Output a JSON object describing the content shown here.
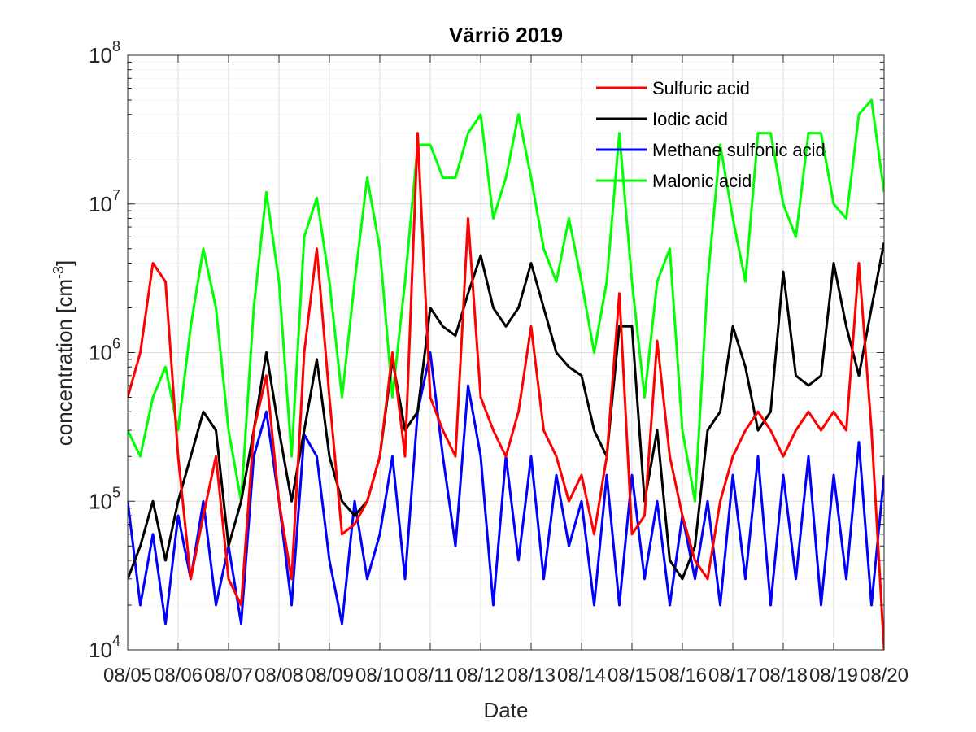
{
  "chart_data": {
    "type": "line",
    "title": "Värriö 2019",
    "xlabel": "Date",
    "ylabel": {
      "main": "concentration [cm",
      "sup": "-3",
      "close": "]"
    },
    "x_scale": "date",
    "xlim": [
      "2019-08-05",
      "2019-08-20"
    ],
    "xticks": [
      "08/05",
      "08/06",
      "08/07",
      "08/08",
      "08/09",
      "08/10",
      "08/11",
      "08/12",
      "08/13",
      "08/14",
      "08/15",
      "08/16",
      "08/17",
      "08/18",
      "08/19",
      "08/20"
    ],
    "y_scale": "log",
    "ylim": [
      10000,
      100000000
    ],
    "yticks": [
      {
        "base": "10",
        "exp": "4"
      },
      {
        "base": "10",
        "exp": "5"
      },
      {
        "base": "10",
        "exp": "6"
      },
      {
        "base": "10",
        "exp": "7"
      },
      {
        "base": "10",
        "exp": "8"
      }
    ],
    "grid": true,
    "minor_grid": true,
    "legend_position": "top-right",
    "series": [
      {
        "name": "Sulfuric acid",
        "color": "#ff0000",
        "x": [
          "2019-08-05 00:00",
          "2019-08-05 06:00",
          "2019-08-05 12:00",
          "2019-08-05 18:00",
          "2019-08-06 00:00",
          "2019-08-06 06:00",
          "2019-08-06 12:00",
          "2019-08-06 18:00",
          "2019-08-07 00:00",
          "2019-08-07 06:00",
          "2019-08-07 12:00",
          "2019-08-07 18:00",
          "2019-08-08 00:00",
          "2019-08-08 06:00",
          "2019-08-08 12:00",
          "2019-08-08 18:00",
          "2019-08-09 00:00",
          "2019-08-09 06:00",
          "2019-08-09 12:00",
          "2019-08-09 18:00",
          "2019-08-10 00:00",
          "2019-08-10 06:00",
          "2019-08-10 12:00",
          "2019-08-10 18:00",
          "2019-08-11 00:00",
          "2019-08-11 06:00",
          "2019-08-11 12:00",
          "2019-08-11 18:00",
          "2019-08-12 00:00",
          "2019-08-12 06:00",
          "2019-08-12 12:00",
          "2019-08-12 18:00",
          "2019-08-13 00:00",
          "2019-08-13 06:00",
          "2019-08-13 12:00",
          "2019-08-13 18:00",
          "2019-08-14 00:00",
          "2019-08-14 06:00",
          "2019-08-14 12:00",
          "2019-08-14 18:00",
          "2019-08-15 00:00",
          "2019-08-15 06:00",
          "2019-08-15 12:00",
          "2019-08-15 18:00",
          "2019-08-16 00:00",
          "2019-08-16 06:00",
          "2019-08-16 12:00",
          "2019-08-16 18:00",
          "2019-08-17 00:00",
          "2019-08-17 06:00",
          "2019-08-17 12:00",
          "2019-08-17 18:00",
          "2019-08-18 00:00",
          "2019-08-18 06:00",
          "2019-08-18 12:00",
          "2019-08-18 18:00",
          "2019-08-19 00:00",
          "2019-08-19 06:00",
          "2019-08-19 12:00",
          "2019-08-19 18:00",
          "2019-08-20 00:00"
        ],
        "y": [
          500000,
          1000000,
          4000000,
          3000000,
          200000,
          30000,
          80000,
          200000,
          30000,
          20000,
          300000,
          700000,
          100000,
          30000,
          1000000,
          5000000,
          500000,
          60000,
          70000,
          100000,
          200000,
          1000000,
          200000,
          30000000,
          500000,
          300000,
          200000,
          8000000,
          500000,
          300000,
          200000,
          400000,
          1500000,
          300000,
          200000,
          100000,
          150000,
          60000,
          200000,
          2500000,
          60000,
          80000,
          1200000,
          200000,
          80000,
          40000,
          30000,
          100000,
          200000,
          300000,
          400000,
          300000,
          200000,
          300000,
          400000,
          300000,
          400000,
          300000,
          4000000,
          300000,
          10000
        ]
      },
      {
        "name": "Iodic acid",
        "color": "#000000",
        "x": [
          "2019-08-05 00:00",
          "2019-08-05 06:00",
          "2019-08-05 12:00",
          "2019-08-05 18:00",
          "2019-08-06 00:00",
          "2019-08-06 06:00",
          "2019-08-06 12:00",
          "2019-08-06 18:00",
          "2019-08-07 00:00",
          "2019-08-07 06:00",
          "2019-08-07 12:00",
          "2019-08-07 18:00",
          "2019-08-08 00:00",
          "2019-08-08 06:00",
          "2019-08-08 12:00",
          "2019-08-08 18:00",
          "2019-08-09 00:00",
          "2019-08-09 06:00",
          "2019-08-09 12:00",
          "2019-08-09 18:00",
          "2019-08-10 00:00",
          "2019-08-10 06:00",
          "2019-08-10 12:00",
          "2019-08-10 18:00",
          "2019-08-11 00:00",
          "2019-08-11 06:00",
          "2019-08-11 12:00",
          "2019-08-11 18:00",
          "2019-08-12 00:00",
          "2019-08-12 06:00",
          "2019-08-12 12:00",
          "2019-08-12 18:00",
          "2019-08-13 00:00",
          "2019-08-13 06:00",
          "2019-08-13 12:00",
          "2019-08-13 18:00",
          "2019-08-14 00:00",
          "2019-08-14 06:00",
          "2019-08-14 12:00",
          "2019-08-14 18:00",
          "2019-08-15 00:00",
          "2019-08-15 06:00",
          "2019-08-15 12:00",
          "2019-08-15 18:00",
          "2019-08-16 00:00",
          "2019-08-16 06:00",
          "2019-08-16 12:00",
          "2019-08-16 18:00",
          "2019-08-17 00:00",
          "2019-08-17 06:00",
          "2019-08-17 12:00",
          "2019-08-17 18:00",
          "2019-08-18 00:00",
          "2019-08-18 06:00",
          "2019-08-18 12:00",
          "2019-08-18 18:00",
          "2019-08-19 00:00",
          "2019-08-19 06:00",
          "2019-08-19 12:00",
          "2019-08-19 18:00",
          "2019-08-20 00:00"
        ],
        "y": [
          30000,
          50000,
          100000,
          40000,
          100000,
          200000,
          400000,
          300000,
          50000,
          100000,
          300000,
          1000000,
          300000,
          100000,
          300000,
          900000,
          200000,
          100000,
          80000,
          100000,
          200000,
          900000,
          300000,
          400000,
          2000000,
          1500000,
          1300000,
          2500000,
          4500000,
          2000000,
          1500000,
          2000000,
          4000000,
          2000000,
          1000000,
          800000,
          700000,
          300000,
          200000,
          1500000,
          1500000,
          100000,
          300000,
          40000,
          30000,
          50000,
          300000,
          400000,
          1500000,
          800000,
          300000,
          400000,
          3500000,
          700000,
          600000,
          700000,
          4000000,
          1500000,
          700000,
          2000000,
          5500000
        ]
      },
      {
        "name": "Methane sulfonic acid",
        "color": "#0000ff",
        "x": [
          "2019-08-05 00:00",
          "2019-08-05 06:00",
          "2019-08-05 12:00",
          "2019-08-05 18:00",
          "2019-08-06 00:00",
          "2019-08-06 06:00",
          "2019-08-06 12:00",
          "2019-08-06 18:00",
          "2019-08-07 00:00",
          "2019-08-07 06:00",
          "2019-08-07 12:00",
          "2019-08-07 18:00",
          "2019-08-08 00:00",
          "2019-08-08 06:00",
          "2019-08-08 12:00",
          "2019-08-08 18:00",
          "2019-08-09 00:00",
          "2019-08-09 06:00",
          "2019-08-09 12:00",
          "2019-08-09 18:00",
          "2019-08-10 00:00",
          "2019-08-10 06:00",
          "2019-08-10 12:00",
          "2019-08-10 18:00",
          "2019-08-11 00:00",
          "2019-08-11 06:00",
          "2019-08-11 12:00",
          "2019-08-11 18:00",
          "2019-08-12 00:00",
          "2019-08-12 06:00",
          "2019-08-12 12:00",
          "2019-08-12 18:00",
          "2019-08-13 00:00",
          "2019-08-13 06:00",
          "2019-08-13 12:00",
          "2019-08-13 18:00",
          "2019-08-14 00:00",
          "2019-08-14 06:00",
          "2019-08-14 12:00",
          "2019-08-14 18:00",
          "2019-08-15 00:00",
          "2019-08-15 06:00",
          "2019-08-15 12:00",
          "2019-08-15 18:00",
          "2019-08-16 00:00",
          "2019-08-16 06:00",
          "2019-08-16 12:00",
          "2019-08-16 18:00",
          "2019-08-17 00:00",
          "2019-08-17 06:00",
          "2019-08-17 12:00",
          "2019-08-17 18:00",
          "2019-08-18 00:00",
          "2019-08-18 06:00",
          "2019-08-18 12:00",
          "2019-08-18 18:00",
          "2019-08-19 00:00",
          "2019-08-19 06:00",
          "2019-08-19 12:00",
          "2019-08-19 18:00",
          "2019-08-20 00:00"
        ],
        "y": [
          100000,
          20000,
          60000,
          15000,
          80000,
          30000,
          100000,
          20000,
          50000,
          15000,
          200000,
          400000,
          100000,
          20000,
          280000,
          200000,
          40000,
          15000,
          100000,
          30000,
          60000,
          200000,
          30000,
          400000,
          1000000,
          200000,
          50000,
          600000,
          200000,
          20000,
          200000,
          40000,
          200000,
          30000,
          150000,
          50000,
          100000,
          20000,
          150000,
          20000,
          150000,
          30000,
          100000,
          20000,
          80000,
          30000,
          100000,
          20000,
          150000,
          30000,
          200000,
          20000,
          150000,
          30000,
          200000,
          20000,
          150000,
          30000,
          250000,
          20000,
          150000
        ]
      },
      {
        "name": "Malonic acid",
        "color": "#00ff00",
        "x": [
          "2019-08-05 00:00",
          "2019-08-05 06:00",
          "2019-08-05 12:00",
          "2019-08-05 18:00",
          "2019-08-06 00:00",
          "2019-08-06 06:00",
          "2019-08-06 12:00",
          "2019-08-06 18:00",
          "2019-08-07 00:00",
          "2019-08-07 06:00",
          "2019-08-07 12:00",
          "2019-08-07 18:00",
          "2019-08-08 00:00",
          "2019-08-08 06:00",
          "2019-08-08 12:00",
          "2019-08-08 18:00",
          "2019-08-09 00:00",
          "2019-08-09 06:00",
          "2019-08-09 12:00",
          "2019-08-09 18:00",
          "2019-08-10 00:00",
          "2019-08-10 06:00",
          "2019-08-10 12:00",
          "2019-08-10 18:00",
          "2019-08-11 00:00",
          "2019-08-11 06:00",
          "2019-08-11 12:00",
          "2019-08-11 18:00",
          "2019-08-12 00:00",
          "2019-08-12 06:00",
          "2019-08-12 12:00",
          "2019-08-12 18:00",
          "2019-08-13 00:00",
          "2019-08-13 06:00",
          "2019-08-13 12:00",
          "2019-08-13 18:00",
          "2019-08-14 00:00",
          "2019-08-14 06:00",
          "2019-08-14 12:00",
          "2019-08-14 18:00",
          "2019-08-15 00:00",
          "2019-08-15 06:00",
          "2019-08-15 12:00",
          "2019-08-15 18:00",
          "2019-08-16 00:00",
          "2019-08-16 06:00",
          "2019-08-16 12:00",
          "2019-08-16 18:00",
          "2019-08-17 00:00",
          "2019-08-17 06:00",
          "2019-08-17 12:00",
          "2019-08-17 18:00",
          "2019-08-18 00:00",
          "2019-08-18 06:00",
          "2019-08-18 12:00",
          "2019-08-18 18:00",
          "2019-08-19 00:00",
          "2019-08-19 06:00",
          "2019-08-19 12:00",
          "2019-08-19 18:00",
          "2019-08-20 00:00"
        ],
        "y": [
          300000,
          200000,
          500000,
          800000,
          300000,
          1500000,
          5000000,
          2000000,
          300000,
          100000,
          2000000,
          12000000,
          3000000,
          200000,
          6000000,
          11000000,
          3000000,
          500000,
          3000000,
          15000000,
          5000000,
          500000,
          3000000,
          25000000,
          25000000,
          15000000,
          15000000,
          30000000,
          40000000,
          8000000,
          15000000,
          40000000,
          15000000,
          5000000,
          3000000,
          8000000,
          3000000,
          1000000,
          3000000,
          30000000,
          3000000,
          500000,
          3000000,
          5000000,
          300000,
          100000,
          3000000,
          25000000,
          8000000,
          3000000,
          30000000,
          30000000,
          10000000,
          6000000,
          30000000,
          30000000,
          10000000,
          8000000,
          40000000,
          50000000,
          12000000
        ]
      }
    ]
  }
}
